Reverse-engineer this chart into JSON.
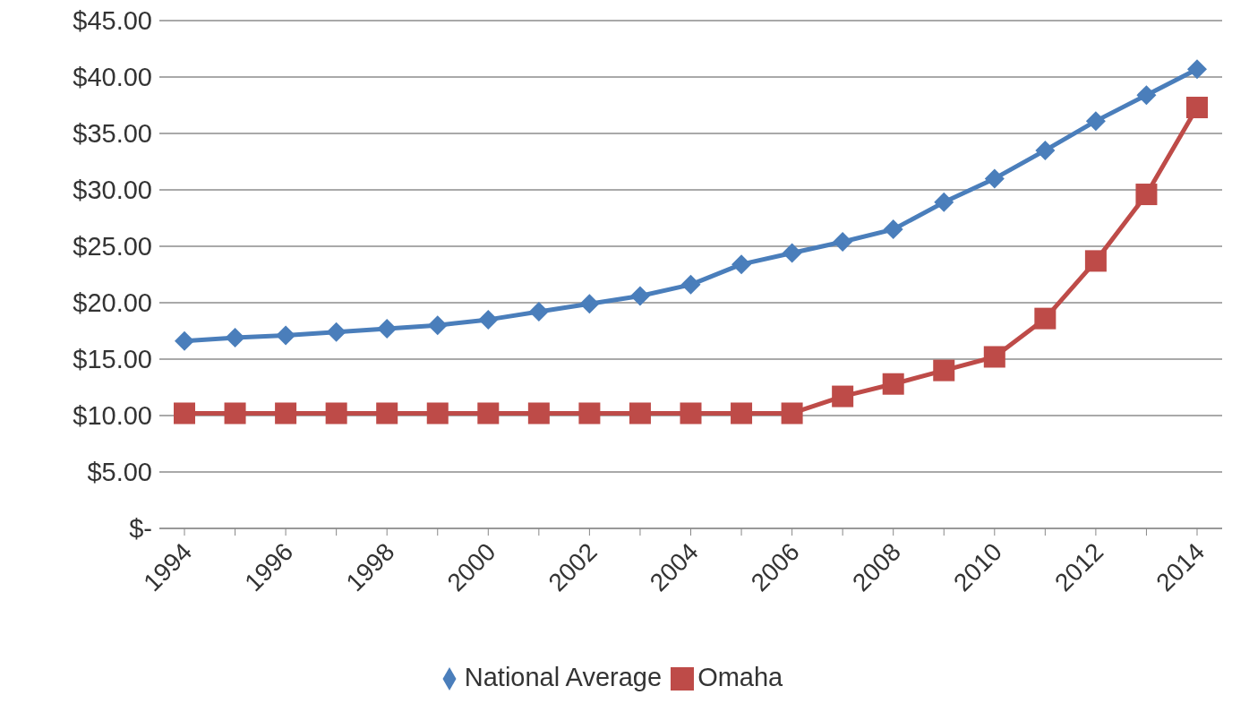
{
  "chart_data": {
    "type": "line",
    "categories": [
      "1994",
      null,
      "1996",
      null,
      "1998",
      null,
      "2000",
      null,
      "2002",
      null,
      "2004",
      null,
      "2006",
      null,
      "2008",
      null,
      "2010",
      null,
      "2012",
      null,
      "2014"
    ],
    "series": [
      {
        "name": "National Average",
        "color": "#4a7ebb",
        "marker": "diamond",
        "values": [
          16.6,
          16.9,
          17.1,
          17.4,
          17.7,
          18.0,
          18.5,
          19.2,
          19.9,
          20.6,
          21.6,
          23.4,
          24.4,
          25.4,
          26.5,
          28.9,
          31.0,
          33.5,
          36.1,
          38.4,
          40.7
        ]
      },
      {
        "name": "Omaha",
        "color": "#be4b48",
        "marker": "square",
        "values": [
          10.2,
          10.2,
          10.2,
          10.2,
          10.2,
          10.2,
          10.2,
          10.2,
          10.2,
          10.2,
          10.2,
          10.2,
          10.2,
          11.7,
          12.8,
          14.0,
          15.2,
          18.6,
          23.7,
          29.6,
          37.3
        ]
      }
    ],
    "ylim": [
      0,
      45
    ],
    "yticks": [
      {
        "value": 0,
        "label": "$-"
      },
      {
        "value": 5,
        "label": "$5.00"
      },
      {
        "value": 10,
        "label": "$10.00"
      },
      {
        "value": 15,
        "label": "$15.00"
      },
      {
        "value": 20,
        "label": "$20.00"
      },
      {
        "value": 25,
        "label": "$25.00"
      },
      {
        "value": 30,
        "label": "$30.00"
      },
      {
        "value": 35,
        "label": "$35.00"
      },
      {
        "value": 40,
        "label": "$40.00"
      },
      {
        "value": 45,
        "label": "$45.00"
      }
    ],
    "grid": "y",
    "legend": "bottom"
  }
}
